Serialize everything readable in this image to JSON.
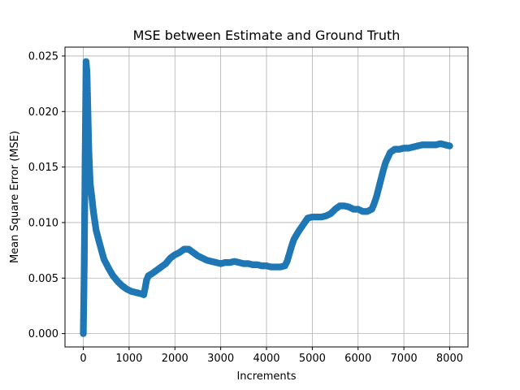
{
  "chart_data": {
    "type": "line",
    "title": "MSE between Estimate and Ground Truth",
    "xlabel": "Increments",
    "ylabel": "Mean Square Error (MSE)",
    "xlim": [
      -400,
      8400
    ],
    "ylim": [
      -0.0012,
      0.0258
    ],
    "xticks": [
      0,
      1000,
      2000,
      3000,
      4000,
      5000,
      6000,
      7000,
      8000
    ],
    "xtick_labels": [
      "0",
      "1000",
      "2000",
      "3000",
      "4000",
      "5000",
      "6000",
      "7000",
      "8000"
    ],
    "yticks": [
      0.0,
      0.005,
      0.01,
      0.015,
      0.02,
      0.025
    ],
    "ytick_labels": [
      "0.000",
      "0.005",
      "0.010",
      "0.015",
      "0.020",
      "0.025"
    ],
    "grid": true,
    "series": [
      {
        "color": "#1f77b4",
        "marker": "circle",
        "x": [
          0,
          20,
          40,
          60,
          80,
          100,
          120,
          150,
          180,
          220,
          280,
          350,
          450,
          550,
          650,
          750,
          850,
          950,
          1050,
          1150,
          1250,
          1320,
          1350,
          1380,
          1420,
          1500,
          1600,
          1700,
          1800,
          1900,
          2000,
          2100,
          2200,
          2300,
          2400,
          2500,
          2600,
          2700,
          2800,
          2900,
          3000,
          3100,
          3200,
          3300,
          3400,
          3500,
          3600,
          3700,
          3800,
          3900,
          4000,
          4100,
          4200,
          4300,
          4400,
          4450,
          4500,
          4550,
          4600,
          4700,
          4800,
          4900,
          5000,
          5100,
          5200,
          5300,
          5400,
          5500,
          5600,
          5700,
          5800,
          5900,
          6000,
          6100,
          6200,
          6300,
          6350,
          6400,
          6450,
          6500,
          6550,
          6600,
          6700,
          6800,
          6900,
          7000,
          7100,
          7200,
          7300,
          7400,
          7500,
          7600,
          7700,
          7800,
          7900,
          8000
        ],
        "y": [
          0.0,
          0.006,
          0.016,
          0.0245,
          0.0235,
          0.02,
          0.0165,
          0.0135,
          0.0125,
          0.011,
          0.0093,
          0.0082,
          0.0067,
          0.0059,
          0.0052,
          0.0047,
          0.0043,
          0.004,
          0.0038,
          0.0037,
          0.0036,
          0.0035,
          0.0041,
          0.0048,
          0.0052,
          0.0054,
          0.0057,
          0.006,
          0.0063,
          0.0068,
          0.0071,
          0.0073,
          0.0076,
          0.0076,
          0.0073,
          0.007,
          0.0068,
          0.0066,
          0.0065,
          0.0064,
          0.0063,
          0.0064,
          0.0064,
          0.0065,
          0.0064,
          0.0063,
          0.0063,
          0.0062,
          0.0062,
          0.0061,
          0.0061,
          0.006,
          0.006,
          0.006,
          0.0061,
          0.0065,
          0.0072,
          0.0079,
          0.0085,
          0.0092,
          0.0098,
          0.0104,
          0.0105,
          0.0105,
          0.0105,
          0.0106,
          0.0108,
          0.0112,
          0.0115,
          0.0115,
          0.0114,
          0.0112,
          0.0112,
          0.011,
          0.011,
          0.0112,
          0.0117,
          0.0123,
          0.0131,
          0.0139,
          0.0147,
          0.0154,
          0.0163,
          0.0166,
          0.0166,
          0.0167,
          0.0167,
          0.0168,
          0.0169,
          0.017,
          0.017,
          0.017,
          0.017,
          0.0171,
          0.017,
          0.0169
        ]
      }
    ]
  }
}
